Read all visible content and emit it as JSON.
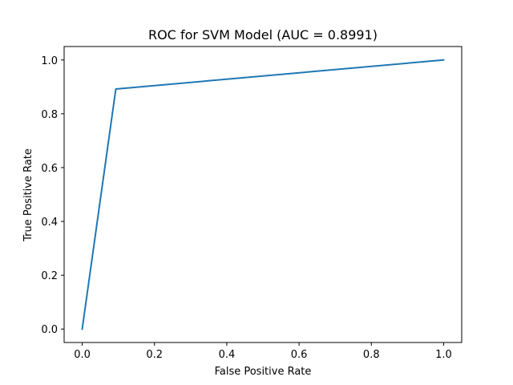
{
  "chart_data": {
    "type": "line",
    "title": "ROC for SVM Model (AUC = 0.8991)",
    "xlabel": "False Positive Rate",
    "ylabel": "True Positive Rate",
    "xlim": [
      -0.05,
      1.05
    ],
    "ylim": [
      -0.05,
      1.05
    ],
    "xticks": [
      0.0,
      0.2,
      0.4,
      0.6,
      0.8,
      1.0
    ],
    "yticks": [
      0.0,
      0.2,
      0.4,
      0.6,
      0.8,
      1.0
    ],
    "xtick_labels": [
      "0.0",
      "0.2",
      "0.4",
      "0.6",
      "0.8",
      "1.0"
    ],
    "ytick_labels": [
      "0.0",
      "0.2",
      "0.4",
      "0.6",
      "0.8",
      "1.0"
    ],
    "grid": false,
    "series": [
      {
        "color": "#1f77b4",
        "x": [
          0.0,
          0.093,
          1.0
        ],
        "y": [
          0.0,
          0.892,
          1.0
        ]
      }
    ]
  }
}
